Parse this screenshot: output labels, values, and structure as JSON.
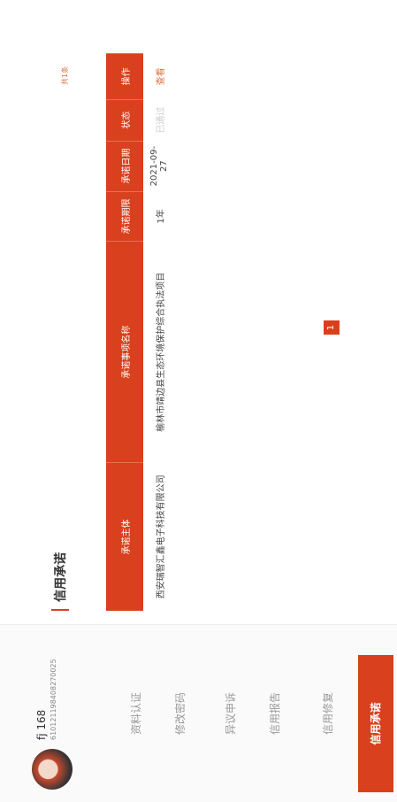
{
  "sidebar": {
    "user_name": "fj 168",
    "user_id": "610121198408270025",
    "menu": [
      "资料认证",
      "修改密码",
      "异议申诉",
      "信用报告",
      "信用修复",
      "信用承诺"
    ]
  },
  "main": {
    "title": "信用承诺",
    "total": "共1条",
    "table": {
      "headers": [
        "承诺主体",
        "承诺事项名称",
        "承诺期限",
        "承诺日期",
        "状态",
        "操作"
      ],
      "rows": [
        [
          "西安瑞智汇鑫电子科技有限公司",
          "榆林市靖边县生态环境保护综合执法项目",
          "1年",
          "2021-09-27",
          "已通过",
          "查看"
        ]
      ]
    },
    "pagination": [
      "1"
    ]
  }
}
